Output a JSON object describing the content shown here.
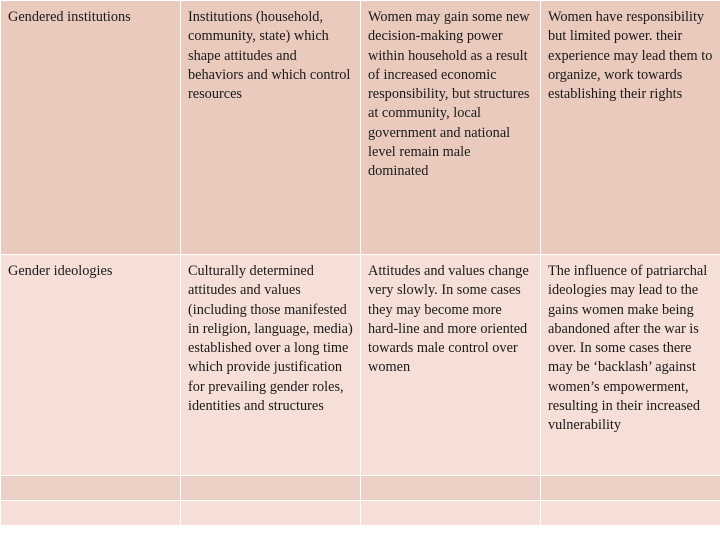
{
  "table": {
    "rows": [
      {
        "cells": [
          "Gendered institutions",
          "Institutions (household, community, state) which shape attitudes and behaviors and which control resources",
          "Women may gain some new decision-making power within household as a result of increased economic responsibility, but structures at community, local government and national level remain male dominated",
          "Women have responsibility but limited power. their experience may lead them to organize, work towards establishing their rights"
        ]
      },
      {
        "cells": [
          "Gender ideologies",
          "Culturally determined attitudes and values (including those manifested in religion, language, media) established over a long time which provide justification for prevailing gender roles, identities and structures",
          "Attitudes and values change very slowly. In some cases they may become more hard-line and more oriented towards male control over women",
          "The influence of patriarchal ideologies may lead to the gains women make being abandoned after the war is over. In some cases there may be ‘backlash’ against women’s empowerment, resulting in their increased vulnerability"
        ]
      }
    ]
  }
}
